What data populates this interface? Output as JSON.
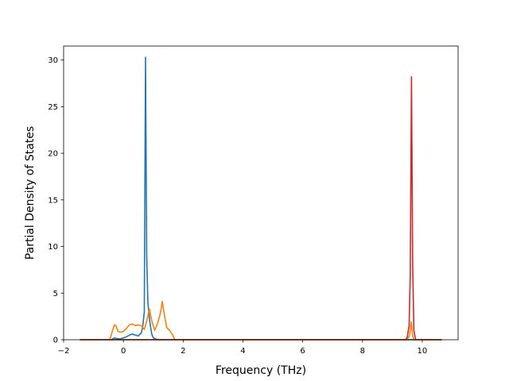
{
  "chart_data": {
    "type": "line",
    "title": "",
    "xlabel": "Frequency (THz)",
    "ylabel": "Partial Density of States",
    "xlim": [
      -2.0,
      11.2
    ],
    "ylim": [
      0,
      31.5
    ],
    "xticks": [
      -2,
      0,
      2,
      4,
      6,
      8,
      10
    ],
    "xtick_labels": [
      "−2",
      "0",
      "2",
      "4",
      "6",
      "8",
      "10"
    ],
    "yticks": [
      0,
      5,
      10,
      15,
      20,
      25,
      30
    ],
    "ytick_labels": [
      "0",
      "5",
      "10",
      "15",
      "20",
      "25",
      "30"
    ],
    "grid": false,
    "legend": "none",
    "series": [
      {
        "color": "#1f77b4",
        "points": [
          [
            -1.45,
            0
          ],
          [
            -0.4,
            0
          ],
          [
            -0.3,
            0.2
          ],
          [
            -0.2,
            0.1
          ],
          [
            -0.1,
            0.1
          ],
          [
            0,
            0.2
          ],
          [
            0.1,
            0.3
          ],
          [
            0.2,
            0.5
          ],
          [
            0.3,
            0.6
          ],
          [
            0.4,
            0.5
          ],
          [
            0.5,
            0.4
          ],
          [
            0.55,
            0.6
          ],
          [
            0.6,
            0.7
          ],
          [
            0.65,
            1.5
          ],
          [
            0.7,
            3.0
          ],
          [
            0.74,
            30.3
          ],
          [
            0.78,
            9.0
          ],
          [
            0.82,
            4.0
          ],
          [
            0.88,
            2.0
          ],
          [
            0.95,
            0.6
          ],
          [
            1.0,
            0.2
          ],
          [
            1.1,
            0.05
          ],
          [
            1.3,
            0
          ],
          [
            10.65,
            0
          ]
        ]
      },
      {
        "color": "#ff7f0e",
        "points": [
          [
            -1.45,
            0
          ],
          [
            -0.45,
            0
          ],
          [
            -0.38,
            0.8
          ],
          [
            -0.3,
            1.6
          ],
          [
            -0.25,
            1.5
          ],
          [
            -0.18,
            0.9
          ],
          [
            -0.1,
            0.8
          ],
          [
            0.0,
            0.9
          ],
          [
            0.1,
            1.2
          ],
          [
            0.2,
            1.6
          ],
          [
            0.3,
            1.7
          ],
          [
            0.4,
            1.5
          ],
          [
            0.5,
            1.6
          ],
          [
            0.6,
            1.5
          ],
          [
            0.7,
            1.1
          ],
          [
            0.78,
            2.0
          ],
          [
            0.87,
            3.3
          ],
          [
            0.95,
            2.0
          ],
          [
            1.05,
            1.0
          ],
          [
            1.15,
            1.8
          ],
          [
            1.25,
            3.0
          ],
          [
            1.3,
            4.1
          ],
          [
            1.38,
            2.5
          ],
          [
            1.45,
            1.3
          ],
          [
            1.55,
            1.0
          ],
          [
            1.65,
            0.5
          ],
          [
            1.72,
            0
          ],
          [
            9.5,
            0
          ],
          [
            9.58,
            0.5
          ],
          [
            9.63,
            1.9
          ],
          [
            9.67,
            0.6
          ],
          [
            9.72,
            0
          ],
          [
            10.65,
            0
          ]
        ]
      },
      {
        "color": "#2ca02c",
        "points": [
          [
            -1.45,
            0
          ],
          [
            10.65,
            0
          ]
        ]
      },
      {
        "color": "#d62728",
        "points": [
          [
            -1.45,
            0
          ],
          [
            9.45,
            0
          ],
          [
            9.5,
            0.3
          ],
          [
            9.56,
            1.5
          ],
          [
            9.6,
            7.0
          ],
          [
            9.64,
            28.2
          ],
          [
            9.68,
            8.0
          ],
          [
            9.72,
            1.0
          ],
          [
            9.78,
            0
          ],
          [
            10.65,
            0
          ]
        ]
      }
    ]
  }
}
